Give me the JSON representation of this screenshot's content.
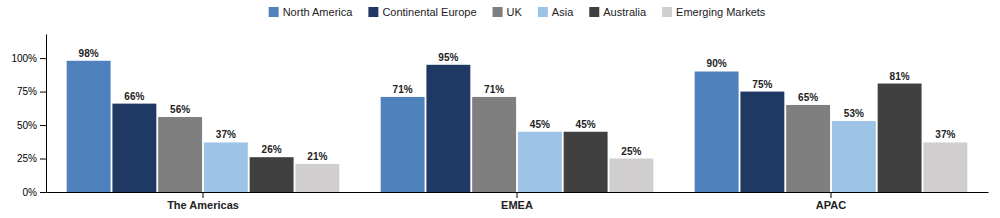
{
  "chart_data": {
    "type": "bar",
    "categories": [
      "The Americas",
      "EMEA",
      "APAC"
    ],
    "series": [
      {
        "name": "North America",
        "color": "#4F81BD",
        "values": [
          98,
          71,
          90
        ],
        "value_labels": [
          "98%",
          "71%",
          "90%"
        ]
      },
      {
        "name": "Continental Europe",
        "color": "#1F3864",
        "values": [
          66,
          95,
          75
        ],
        "value_labels": [
          "66%",
          "95%",
          "75%"
        ]
      },
      {
        "name": "UK",
        "color": "#7F7F7F",
        "values": [
          56,
          71,
          65
        ],
        "value_labels": [
          "56%",
          "71%",
          "65%"
        ]
      },
      {
        "name": "Asia",
        "color": "#9DC3E6",
        "values": [
          37,
          45,
          53
        ],
        "value_labels": [
          "37%",
          "45%",
          "53%"
        ]
      },
      {
        "name": "Australia",
        "color": "#404040",
        "values": [
          26,
          45,
          81
        ],
        "value_labels": [
          "26%",
          "45%",
          "81%"
        ]
      },
      {
        "name": "Emerging Markets",
        "color": "#D0CECE",
        "values": [
          21,
          25,
          37
        ],
        "value_labels": [
          "21%",
          "25%",
          "37%"
        ]
      }
    ],
    "ylim": [
      0,
      118
    ],
    "yticks": [
      {
        "value": 0,
        "label": "0%"
      },
      {
        "value": 25,
        "label": "25%"
      },
      {
        "value": 50,
        "label": "50%"
      },
      {
        "value": 75,
        "label": "75%"
      },
      {
        "value": 100,
        "label": "100%"
      }
    ],
    "grid": false,
    "legend": "top",
    "data_labels": true
  }
}
